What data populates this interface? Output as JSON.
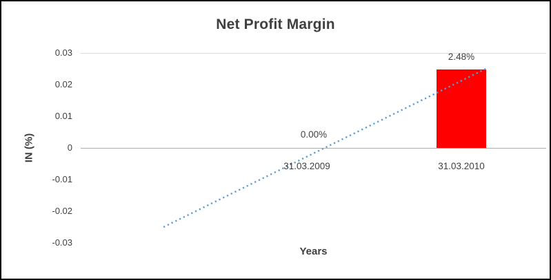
{
  "chart_data": {
    "type": "bar",
    "title": "Net Profit Margin",
    "xlabel": "Years",
    "ylabel": "IN (%)",
    "categories": [
      "31.03.2009",
      "31.03.2010"
    ],
    "values": [
      0,
      0.0248
    ],
    "data_labels": [
      "0.00%",
      "2.48%"
    ],
    "ylim": [
      -0.03,
      0.03
    ],
    "yticks": [
      0.03,
      0.02,
      0.01,
      0,
      -0.01,
      -0.02,
      -0.03
    ],
    "ytick_labels": [
      "0.03",
      "0.02",
      "0.01",
      "0",
      "-0.01",
      "-0.02",
      "-0.03"
    ],
    "bar_color": "#FF0000",
    "grid": "horizontal",
    "legend": "none",
    "text_color": "#404040",
    "trendline": {
      "type": "linear",
      "style": "dotted",
      "color": "#5B9BD5",
      "points": [
        {
          "x_frac": 0.178,
          "value": -0.025
        },
        {
          "x_frac": 0.87,
          "value": 0.025
        }
      ]
    }
  }
}
